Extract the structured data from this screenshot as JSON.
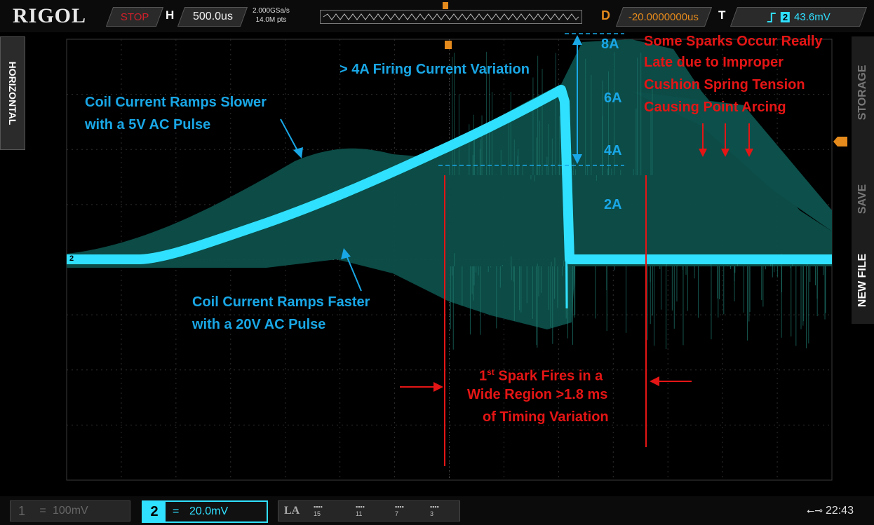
{
  "brand": "RIGOL",
  "status": "STOP",
  "timebase": {
    "label": "H",
    "value": "500.0us",
    "sample_rate": "2.000GSa/s",
    "memory_depth": "14.0M pts"
  },
  "delay": {
    "label": "D",
    "value": "-20.0000000us"
  },
  "trigger": {
    "label": "T",
    "slope_icon": "rising-edge-icon",
    "source": "2",
    "level": "43.6mV"
  },
  "side_left": {
    "label": "HORIZONTAL"
  },
  "side_menu": {
    "items": [
      "STORAGE",
      "SAVE",
      "NEW FILE"
    ]
  },
  "channels": {
    "ch1": {
      "number": "1",
      "coupling": "=",
      "scale": "100mV"
    },
    "ch2": {
      "number": "2",
      "coupling": "=",
      "scale": "20.0mV",
      "marker": "2"
    }
  },
  "la": {
    "label": "LA",
    "groups": [
      "15",
      "11",
      "7",
      "3"
    ]
  },
  "usb_icon": "usb-icon",
  "clock": "22:43",
  "current_labels": [
    "8A",
    "6A",
    "4A",
    "2A"
  ],
  "annotations": {
    "firing_variation": "> 4A Firing Current Variation",
    "ramp_slower_1": "Coil Current Ramps Slower",
    "ramp_slower_2": "with a 5V AC Pulse",
    "ramp_faster_1": "Coil Current Ramps Faster",
    "ramp_faster_2": "with a 20V AC Pulse",
    "late_sparks": [
      "Some Sparks Occur Really",
      "Late due to Improper",
      "Cushion Spring Tension",
      "Causing Point Arcing"
    ],
    "spark_1": "1",
    "spark_sup": "st",
    "spark_1_rest": " Spark Fires in a",
    "spark_2": "Wide Region >1.8 ms",
    "spark_3": "of Timing Variation"
  },
  "colors": {
    "trace": "#30e0ff",
    "envelope": "#0d4f4a",
    "annotation_blue": "#19a7e6",
    "annotation_red": "#e51515",
    "delay_orange": "#e58a1c"
  }
}
